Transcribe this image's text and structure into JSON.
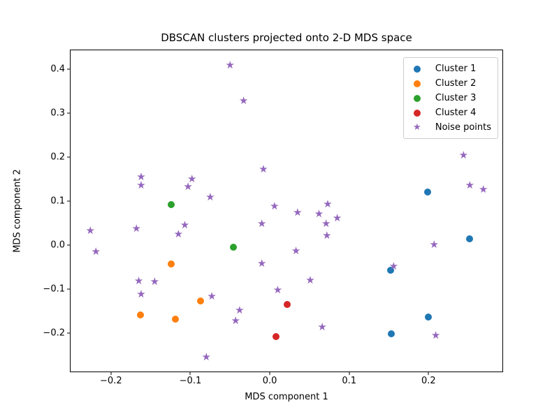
{
  "chart_data": {
    "type": "scatter",
    "title": "DBSCAN clusters projected onto 2-D MDS space",
    "xlabel": "MDS component 1",
    "ylabel": "MDS component 2",
    "xlim": [
      -0.2509,
      0.293
    ],
    "ylim": [
      -0.2875,
      0.4423
    ],
    "x_ticks": [
      -0.2,
      -0.1,
      0.0,
      0.1,
      0.2
    ],
    "y_ticks": [
      -0.2,
      -0.1,
      0.0,
      0.1,
      0.2,
      0.3,
      0.4
    ],
    "grid": false,
    "legend_position": "upper right",
    "background_color": "#ffffff",
    "axis_color": "#000000",
    "series": [
      {
        "name": "Cluster 1",
        "marker": "circle",
        "color": "#1f77b4",
        "points": [
          [
            0.199,
            0.121
          ],
          [
            0.252,
            0.014
          ],
          [
            0.152,
            -0.058
          ],
          [
            0.2,
            -0.163
          ],
          [
            0.153,
            -0.202
          ]
        ]
      },
      {
        "name": "Cluster 2",
        "marker": "circle",
        "color": "#ff7f0e",
        "points": [
          [
            -0.124,
            -0.043
          ],
          [
            -0.087,
            -0.128
          ],
          [
            -0.163,
            -0.159
          ],
          [
            -0.119,
            -0.168
          ]
        ]
      },
      {
        "name": "Cluster 3",
        "marker": "circle",
        "color": "#2ca02c",
        "points": [
          [
            -0.124,
            0.091
          ],
          [
            -0.046,
            -0.005
          ]
        ]
      },
      {
        "name": "Cluster 4",
        "marker": "circle",
        "color": "#d62728",
        "points": [
          [
            0.022,
            -0.135
          ],
          [
            0.008,
            -0.208
          ]
        ]
      },
      {
        "name": "Noise points",
        "marker": "star",
        "color": "#9467bd",
        "points": [
          [
            -0.05,
            0.407
          ],
          [
            -0.033,
            0.326
          ],
          [
            0.244,
            0.203
          ],
          [
            -0.008,
            0.171
          ],
          [
            -0.162,
            0.153
          ],
          [
            -0.098,
            0.149
          ],
          [
            -0.162,
            0.135
          ],
          [
            -0.103,
            0.131
          ],
          [
            0.252,
            0.135
          ],
          [
            0.269,
            0.125
          ],
          [
            -0.075,
            0.107
          ],
          [
            0.073,
            0.091
          ],
          [
            0.006,
            0.087
          ],
          [
            0.035,
            0.072
          ],
          [
            0.062,
            0.069
          ],
          [
            0.085,
            0.06
          ],
          [
            0.071,
            0.047
          ],
          [
            -0.01,
            0.047
          ],
          [
            0.072,
            0.021
          ],
          [
            -0.226,
            0.031
          ],
          [
            -0.168,
            0.036
          ],
          [
            -0.107,
            0.044
          ],
          [
            -0.115,
            0.024
          ],
          [
            -0.219,
            -0.016
          ],
          [
            0.033,
            -0.014
          ],
          [
            0.207,
            0.0
          ],
          [
            -0.01,
            -0.043
          ],
          [
            0.156,
            -0.049
          ],
          [
            -0.165,
            -0.083
          ],
          [
            -0.145,
            -0.084
          ],
          [
            0.051,
            -0.082
          ],
          [
            -0.162,
            -0.113
          ],
          [
            0.01,
            -0.103
          ],
          [
            -0.073,
            -0.118
          ],
          [
            -0.038,
            -0.15
          ],
          [
            -0.043,
            -0.174
          ],
          [
            0.066,
            -0.187
          ],
          [
            0.209,
            -0.207
          ],
          [
            -0.08,
            -0.256
          ]
        ]
      }
    ]
  }
}
